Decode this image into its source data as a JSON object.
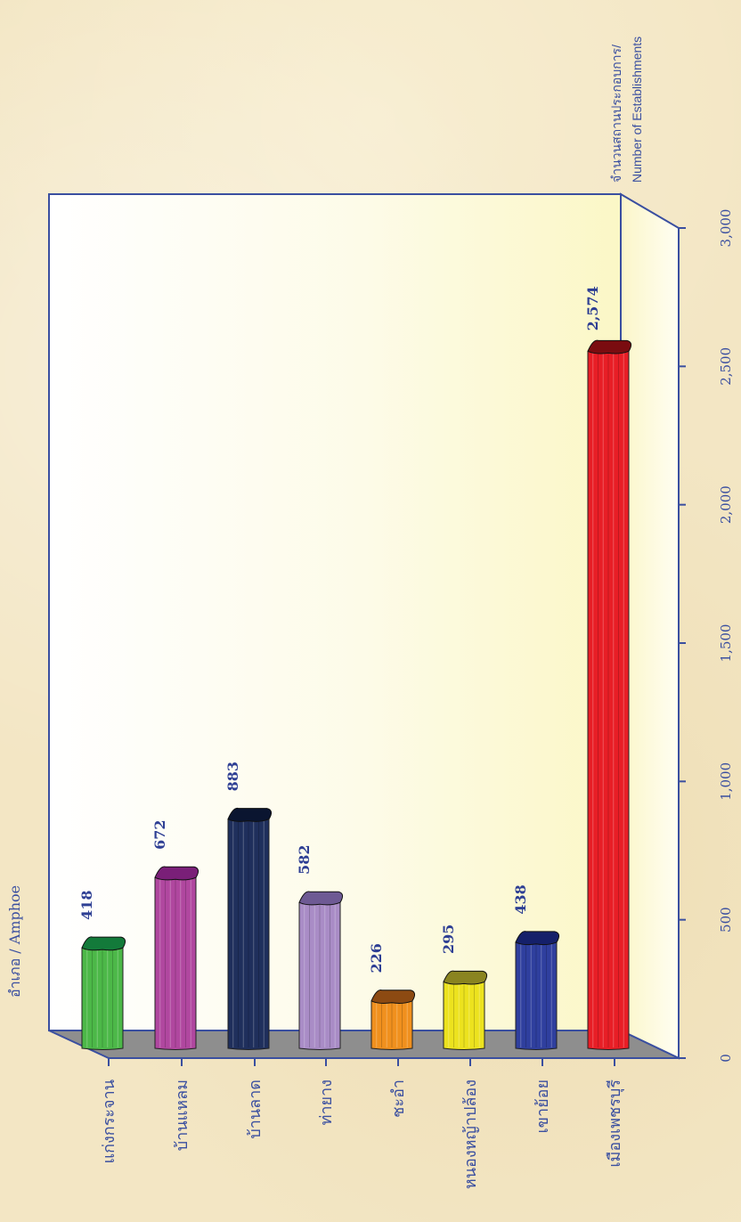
{
  "chart_data": {
    "type": "bar",
    "orientation": "rotated-90",
    "xlabel": "อำเภอ / Amphoe",
    "ylabel_line1": "จำนวนสถานประกอบการ/",
    "ylabel_line2": "Number of Establishments",
    "categories": [
      "แก่งกระจาน",
      "บ้านแหลม",
      "บ้านลาด",
      "ท่ายาง",
      "ชะอำ",
      "หนองหญ้าปล้อง",
      "เขาย้อย",
      "เมืองเพชรบุรี"
    ],
    "values": [
      418,
      672,
      883,
      582,
      226,
      295,
      438,
      2574
    ],
    "value_labels": [
      "418",
      "672",
      "883",
      "582",
      "226",
      "295",
      "438",
      "2,574"
    ],
    "colors": [
      "#4cb848",
      "#b0479f",
      "#1f2f5c",
      "#a98cc6",
      "#f0901e",
      "#ece21e",
      "#2f3f9e",
      "#e81e26"
    ],
    "dark_colors": [
      "#137a3a",
      "#7a1f78",
      "#0a1530",
      "#6e5a94",
      "#8c4a12",
      "#8a8420",
      "#15206a",
      "#7a0c10"
    ],
    "ylim": [
      0,
      3000
    ],
    "yticks": [
      0,
      500,
      1000,
      1500,
      2000,
      2500,
      3000
    ],
    "ytick_labels": [
      "0",
      "500",
      "1,000",
      "1,500",
      "2,000",
      "2,500",
      "3,000"
    ],
    "grid": false,
    "legend": "none"
  }
}
